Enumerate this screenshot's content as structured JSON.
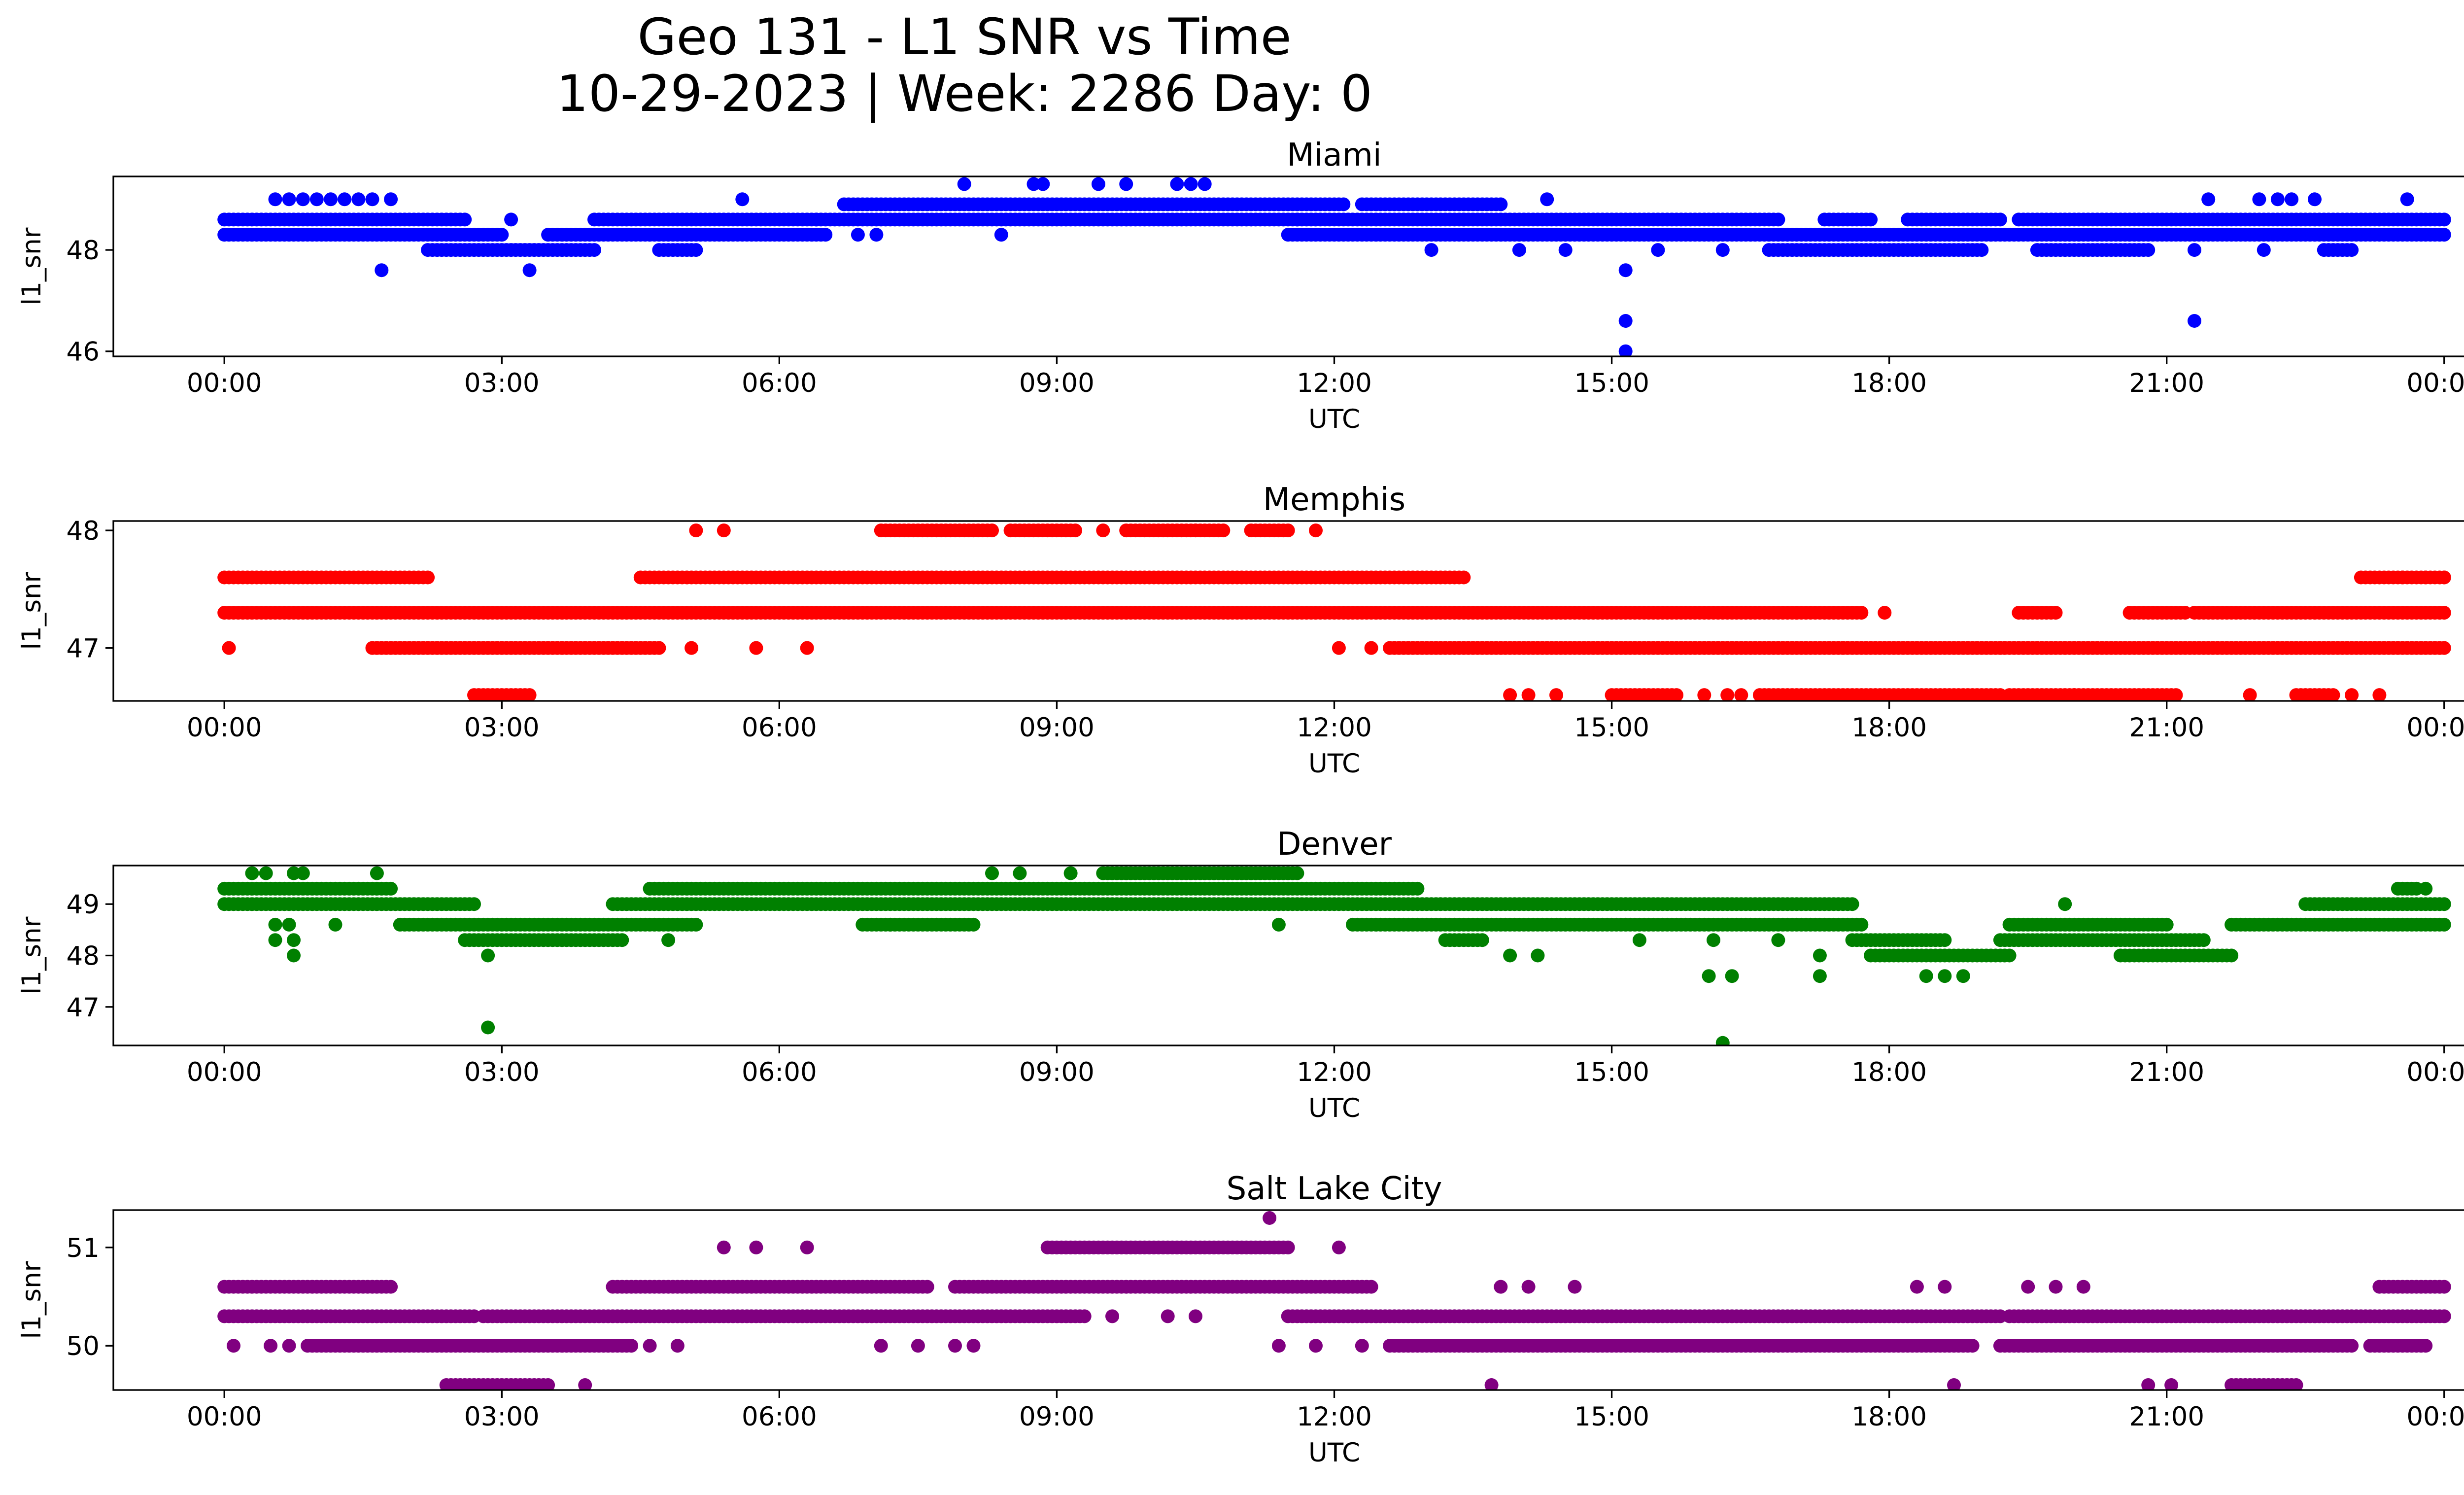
{
  "figure": {
    "title_line1": "Geo 131 - L1 SNR vs Time",
    "title_line2": "10-29-2023 | Week: 2286 Day: 0"
  },
  "chart_data": [
    {
      "type": "scatter",
      "title": "Miami",
      "xlabel": "UTC",
      "ylabel": "l1_snr",
      "color": "#0000ff",
      "x_tick_labels": [
        "00:00",
        "03:00",
        "06:00",
        "09:00",
        "12:00",
        "15:00",
        "18:00",
        "21:00",
        "00:00"
      ],
      "xlim": [
        -1.2,
        25.2
      ],
      "ylim": [
        45.9,
        49.45
      ],
      "y_ticks": [
        46,
        48
      ],
      "bands": [
        {
          "value": 48.3,
          "intervals": [
            [
              0.0,
              3.0
            ],
            [
              3.5,
              4.6
            ],
            [
              4.6,
              6.5
            ],
            [
              11.5,
              16.9
            ],
            [
              16.9,
              19.1
            ],
            [
              19.1,
              24.0
            ]
          ]
        },
        {
          "value": 48.6,
          "intervals": [
            [
              0.0,
              2.6
            ],
            [
              4.0,
              6.4
            ],
            [
              6.4,
              11.6
            ],
            [
              11.6,
              13.4
            ],
            [
              13.4,
              16.8
            ],
            [
              17.3,
              17.8
            ],
            [
              18.2,
              19.2
            ],
            [
              19.4,
              24.0
            ]
          ]
        },
        {
          "value": 48.0,
          "intervals": [
            [
              2.2,
              4.0
            ],
            [
              4.7,
              5.1
            ],
            [
              16.7,
              19.0
            ],
            [
              19.6,
              20.8
            ],
            [
              22.7,
              23.0
            ]
          ]
        },
        {
          "value": 48.9,
          "intervals": [
            [
              6.7,
              12.1
            ],
            [
              12.3,
              13.8
            ]
          ]
        }
      ],
      "points": [
        {
          "x": 0.55,
          "y": 49.0
        },
        {
          "x": 0.7,
          "y": 49.0
        },
        {
          "x": 0.85,
          "y": 49.0
        },
        {
          "x": 1.0,
          "y": 49.0
        },
        {
          "x": 1.15,
          "y": 49.0
        },
        {
          "x": 1.3,
          "y": 49.0
        },
        {
          "x": 1.45,
          "y": 49.0
        },
        {
          "x": 1.6,
          "y": 49.0
        },
        {
          "x": 1.8,
          "y": 49.0
        },
        {
          "x": 5.6,
          "y": 49.0
        },
        {
          "x": 8.0,
          "y": 49.3
        },
        {
          "x": 8.75,
          "y": 49.3
        },
        {
          "x": 8.85,
          "y": 49.3
        },
        {
          "x": 9.45,
          "y": 49.3
        },
        {
          "x": 9.75,
          "y": 49.3
        },
        {
          "x": 10.3,
          "y": 49.3
        },
        {
          "x": 10.45,
          "y": 49.3
        },
        {
          "x": 10.6,
          "y": 49.3
        },
        {
          "x": 14.3,
          "y": 49.0
        },
        {
          "x": 21.45,
          "y": 49.0
        },
        {
          "x": 22.0,
          "y": 49.0
        },
        {
          "x": 22.2,
          "y": 49.0
        },
        {
          "x": 22.35,
          "y": 49.0
        },
        {
          "x": 22.6,
          "y": 49.0
        },
        {
          "x": 23.6,
          "y": 49.0
        },
        {
          "x": 1.7,
          "y": 47.6
        },
        {
          "x": 3.3,
          "y": 47.6
        },
        {
          "x": 15.15,
          "y": 47.6
        },
        {
          "x": 15.15,
          "y": 46.6
        },
        {
          "x": 15.15,
          "y": 46.0
        },
        {
          "x": 21.3,
          "y": 46.6
        },
        {
          "x": 8.4,
          "y": 48.3
        },
        {
          "x": 6.85,
          "y": 48.3
        },
        {
          "x": 7.05,
          "y": 48.3
        },
        {
          "x": 3.1,
          "y": 48.6
        },
        {
          "x": 14.0,
          "y": 48.0
        },
        {
          "x": 14.5,
          "y": 48.0
        },
        {
          "x": 13.05,
          "y": 48.0
        },
        {
          "x": 15.5,
          "y": 48.0
        },
        {
          "x": 21.3,
          "y": 48.0
        },
        {
          "x": 22.05,
          "y": 48.0
        },
        {
          "x": 16.2,
          "y": 48.0
        }
      ]
    },
    {
      "type": "scatter",
      "title": "Memphis",
      "xlabel": "UTC",
      "ylabel": "l1_snr",
      "color": "#ff0000",
      "x_tick_labels": [
        "00:00",
        "03:00",
        "06:00",
        "09:00",
        "12:00",
        "15:00",
        "18:00",
        "21:00",
        "00:00"
      ],
      "xlim": [
        -1.2,
        25.2
      ],
      "ylim": [
        46.55,
        48.08
      ],
      "y_ticks": [
        47,
        48
      ],
      "bands": [
        {
          "value": 47.6,
          "intervals": [
            [
              0.0,
              2.2
            ],
            [
              4.5,
              13.4
            ],
            [
              23.1,
              24.0
            ]
          ]
        },
        {
          "value": 47.3,
          "intervals": [
            [
              0.0,
              7.8
            ],
            [
              7.8,
              17.0
            ],
            [
              17.0,
              17.7
            ],
            [
              19.4,
              19.8
            ],
            [
              20.6,
              21.2
            ],
            [
              21.3,
              24.0
            ]
          ]
        },
        {
          "value": 47.0,
          "intervals": [
            [
              1.6,
              4.7
            ],
            [
              12.6,
              17.5
            ],
            [
              17.5,
              19.2
            ],
            [
              19.2,
              24.0
            ]
          ]
        },
        {
          "value": 46.6,
          "intervals": [
            [
              2.7,
              3.3
            ],
            [
              15.0,
              15.7
            ],
            [
              16.6,
              19.2
            ],
            [
              19.3,
              20.0
            ],
            [
              20.0,
              21.1
            ],
            [
              22.4,
              22.8
            ]
          ]
        },
        {
          "value": 48.0,
          "intervals": [
            [
              7.1,
              8.3
            ],
            [
              8.5,
              9.2
            ],
            [
              9.8,
              10.5
            ],
            [
              10.5,
              10.8
            ],
            [
              11.1,
              11.5
            ]
          ]
        }
      ],
      "points": [
        {
          "x": 0.05,
          "y": 47.0
        },
        {
          "x": 5.05,
          "y": 47.0
        },
        {
          "x": 5.75,
          "y": 47.0
        },
        {
          "x": 6.3,
          "y": 47.0
        },
        {
          "x": 12.05,
          "y": 47.0
        },
        {
          "x": 12.4,
          "y": 47.0
        },
        {
          "x": 5.1,
          "y": 48.0
        },
        {
          "x": 5.4,
          "y": 48.0
        },
        {
          "x": 9.5,
          "y": 48.0
        },
        {
          "x": 9.75,
          "y": 48.0
        },
        {
          "x": 11.8,
          "y": 48.0
        },
        {
          "x": 13.9,
          "y": 46.6
        },
        {
          "x": 14.1,
          "y": 46.6
        },
        {
          "x": 14.4,
          "y": 46.6
        },
        {
          "x": 16.0,
          "y": 46.6
        },
        {
          "x": 16.25,
          "y": 46.6
        },
        {
          "x": 16.4,
          "y": 46.6
        },
        {
          "x": 21.9,
          "y": 46.6
        },
        {
          "x": 23.0,
          "y": 46.6
        },
        {
          "x": 23.3,
          "y": 46.6
        },
        {
          "x": 17.95,
          "y": 47.3
        },
        {
          "x": 23.55,
          "y": 47.6
        },
        {
          "x": 23.8,
          "y": 47.6
        },
        {
          "x": 24.0,
          "y": 47.6
        }
      ]
    },
    {
      "type": "scatter",
      "title": "Denver",
      "xlabel": "UTC",
      "ylabel": "l1_snr",
      "color": "#008000",
      "x_tick_labels": [
        "00:00",
        "03:00",
        "06:00",
        "09:00",
        "12:00",
        "15:00",
        "18:00",
        "21:00",
        "00:00"
      ],
      "xlim": [
        -1.2,
        25.2
      ],
      "ylim": [
        46.25,
        49.75
      ],
      "y_ticks": [
        47,
        48,
        49
      ],
      "bands": [
        {
          "value": 49.3,
          "intervals": [
            [
              0.0,
              1.8
            ],
            [
              4.6,
              8.6
            ],
            [
              8.6,
              12.9
            ],
            [
              23.5,
              23.7
            ]
          ]
        },
        {
          "value": 49.0,
          "intervals": [
            [
              0.0,
              2.7
            ],
            [
              4.2,
              17.6
            ],
            [
              22.5,
              24.0
            ]
          ]
        },
        {
          "value": 48.6,
          "intervals": [
            [
              1.9,
              5.1
            ],
            [
              6.9,
              8.1
            ],
            [
              12.2,
              17.7
            ],
            [
              19.3,
              21.0
            ],
            [
              21.7,
              24.0
            ]
          ]
        },
        {
          "value": 48.3,
          "intervals": [
            [
              2.6,
              4.3
            ],
            [
              13.2,
              13.6
            ],
            [
              17.6,
              18.6
            ],
            [
              19.2,
              21.4
            ]
          ]
        },
        {
          "value": 48.0,
          "intervals": [
            [
              17.8,
              19.3
            ],
            [
              20.5,
              21.7
            ]
          ]
        },
        {
          "value": 49.6,
          "intervals": [
            [
              9.5,
              11.6
            ]
          ]
        }
      ],
      "points": [
        {
          "x": 0.3,
          "y": 49.6
        },
        {
          "x": 0.45,
          "y": 49.6
        },
        {
          "x": 0.75,
          "y": 49.6
        },
        {
          "x": 0.85,
          "y": 49.6
        },
        {
          "x": 1.65,
          "y": 49.6
        },
        {
          "x": 8.3,
          "y": 49.6
        },
        {
          "x": 8.6,
          "y": 49.6
        },
        {
          "x": 9.15,
          "y": 49.6
        },
        {
          "x": 0.55,
          "y": 48.6
        },
        {
          "x": 0.7,
          "y": 48.6
        },
        {
          "x": 1.2,
          "y": 48.6
        },
        {
          "x": 0.55,
          "y": 48.3
        },
        {
          "x": 0.75,
          "y": 48.3
        },
        {
          "x": 0.75,
          "y": 48.0
        },
        {
          "x": 2.85,
          "y": 48.0
        },
        {
          "x": 2.85,
          "y": 46.6
        },
        {
          "x": 16.2,
          "y": 46.3
        },
        {
          "x": 16.05,
          "y": 47.6
        },
        {
          "x": 16.3,
          "y": 47.6
        },
        {
          "x": 17.25,
          "y": 47.6
        },
        {
          "x": 18.4,
          "y": 47.6
        },
        {
          "x": 18.6,
          "y": 47.6
        },
        {
          "x": 18.8,
          "y": 47.6
        },
        {
          "x": 17.25,
          "y": 48.0
        },
        {
          "x": 13.9,
          "y": 48.0
        },
        {
          "x": 14.2,
          "y": 48.0
        },
        {
          "x": 15.3,
          "y": 48.3
        },
        {
          "x": 16.1,
          "y": 48.3
        },
        {
          "x": 16.8,
          "y": 48.3
        },
        {
          "x": 11.4,
          "y": 48.6
        },
        {
          "x": 7.2,
          "y": 48.6
        },
        {
          "x": 4.8,
          "y": 48.3
        },
        {
          "x": 19.9,
          "y": 49.0
        },
        {
          "x": 23.8,
          "y": 49.3
        }
      ]
    },
    {
      "type": "scatter",
      "title": "Salt Lake City",
      "xlabel": "UTC",
      "ylabel": "l1_snr",
      "color": "#800080",
      "x_tick_labels": [
        "00:00",
        "03:00",
        "06:00",
        "09:00",
        "12:00",
        "15:00",
        "18:00",
        "21:00",
        "00:00"
      ],
      "xlim": [
        -1.2,
        25.2
      ],
      "ylim": [
        49.55,
        51.38
      ],
      "y_ticks": [
        50,
        51
      ],
      "bands": [
        {
          "value": 50.6,
          "intervals": [
            [
              0.0,
              1.8
            ],
            [
              4.2,
              7.6
            ],
            [
              7.9,
              12.4
            ],
            [
              23.3,
              24.0
            ]
          ]
        },
        {
          "value": 50.3,
          "intervals": [
            [
              0.0,
              2.7
            ],
            [
              2.8,
              9.3
            ],
            [
              11.5,
              19.2
            ],
            [
              19.3,
              24.0
            ]
          ]
        },
        {
          "value": 50.0,
          "intervals": [
            [
              0.9,
              4.4
            ],
            [
              12.6,
              18.9
            ],
            [
              19.2,
              23.0
            ],
            [
              23.2,
              23.8
            ]
          ]
        },
        {
          "value": 51.0,
          "intervals": [
            [
              8.9,
              11.5
            ]
          ]
        },
        {
          "value": 49.6,
          "intervals": [
            [
              2.4,
              3.5
            ],
            [
              21.7,
              22.4
            ]
          ]
        }
      ],
      "points": [
        {
          "x": 5.4,
          "y": 51.0
        },
        {
          "x": 5.75,
          "y": 51.0
        },
        {
          "x": 6.3,
          "y": 51.0
        },
        {
          "x": 12.05,
          "y": 51.0
        },
        {
          "x": 11.3,
          "y": 51.3
        },
        {
          "x": 0.1,
          "y": 50.0
        },
        {
          "x": 0.5,
          "y": 50.0
        },
        {
          "x": 0.7,
          "y": 50.0
        },
        {
          "x": 4.6,
          "y": 50.0
        },
        {
          "x": 4.9,
          "y": 50.0
        },
        {
          "x": 7.1,
          "y": 50.0
        },
        {
          "x": 7.5,
          "y": 50.0
        },
        {
          "x": 7.9,
          "y": 50.0
        },
        {
          "x": 8.1,
          "y": 50.0
        },
        {
          "x": 11.4,
          "y": 50.0
        },
        {
          "x": 11.8,
          "y": 50.0
        },
        {
          "x": 12.3,
          "y": 50.0
        },
        {
          "x": 9.6,
          "y": 50.3
        },
        {
          "x": 10.2,
          "y": 50.3
        },
        {
          "x": 10.5,
          "y": 50.3
        },
        {
          "x": 3.9,
          "y": 49.6
        },
        {
          "x": 13.7,
          "y": 49.6
        },
        {
          "x": 18.7,
          "y": 49.6
        },
        {
          "x": 20.8,
          "y": 49.6
        },
        {
          "x": 21.05,
          "y": 49.6
        },
        {
          "x": 13.8,
          "y": 50.6
        },
        {
          "x": 14.1,
          "y": 50.6
        },
        {
          "x": 14.6,
          "y": 50.6
        },
        {
          "x": 18.3,
          "y": 50.6
        },
        {
          "x": 18.6,
          "y": 50.6
        },
        {
          "x": 19.5,
          "y": 50.6
        },
        {
          "x": 19.8,
          "y": 50.6
        },
        {
          "x": 20.1,
          "y": 50.6
        }
      ]
    }
  ]
}
